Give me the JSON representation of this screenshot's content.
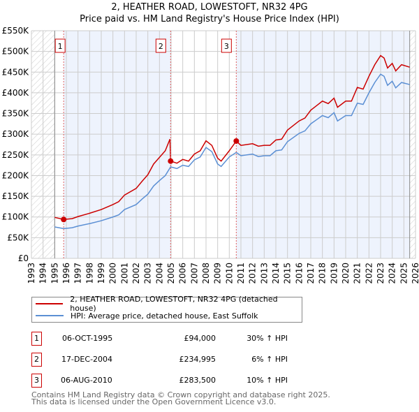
{
  "chart_data": {
    "type": "line",
    "title": "2, HEATHER ROAD, LOWESTOFT, NR32 4PG",
    "subtitle": "Price paid vs. HM Land Registry's House Price Index (HPI)",
    "xlim": [
      1993,
      2026
    ],
    "ylim": [
      0,
      550000
    ],
    "x_ticks": [
      "1993",
      "1994",
      "1995",
      "1996",
      "1997",
      "1998",
      "1999",
      "2000",
      "2001",
      "2002",
      "2003",
      "2004",
      "2005",
      "2006",
      "2007",
      "2008",
      "2009",
      "2010",
      "2011",
      "2012",
      "2013",
      "2014",
      "2015",
      "2016",
      "2017",
      "2018",
      "2019",
      "2020",
      "2021",
      "2022",
      "2023",
      "2024",
      "2025",
      "2026"
    ],
    "y_ticks": [
      {
        "v": 0,
        "label": "£0"
      },
      {
        "v": 50000,
        "label": "£50K"
      },
      {
        "v": 100000,
        "label": "£100K"
      },
      {
        "v": 150000,
        "label": "£150K"
      },
      {
        "v": 200000,
        "label": "£200K"
      },
      {
        "v": 250000,
        "label": "£250K"
      },
      {
        "v": 300000,
        "label": "£300K"
      },
      {
        "v": 350000,
        "label": "£350K"
      },
      {
        "v": 400000,
        "label": "£400K"
      },
      {
        "v": 450000,
        "label": "£450K"
      },
      {
        "v": 500000,
        "label": "£500K"
      },
      {
        "v": 550000,
        "label": "£550K"
      }
    ],
    "grid": true,
    "data_range": [
      1995,
      2025.5
    ],
    "series": [
      {
        "name": "2, HEATHER ROAD, LOWESTOFT, NR32 4PG (detached house)",
        "color": "#cc0000",
        "x": [
          1995,
          1995.77,
          1996.5,
          1997,
          1998,
          1999,
          2000,
          2000.5,
          2001,
          2002,
          2002.5,
          2003,
          2003.5,
          2004,
          2004.5,
          2004.9,
          2004.96,
          2005.5,
          2006,
          2006.5,
          2007,
          2007.5,
          2008,
          2008.5,
          2009,
          2009.3,
          2010,
          2010.6,
          2011,
          2012,
          2012.5,
          2013,
          2013.5,
          2014,
          2014.5,
          2015,
          2016,
          2016.5,
          2017,
          2017.5,
          2018,
          2018.5,
          2019,
          2019.3,
          2020,
          2020.5,
          2021,
          2021.5,
          2022,
          2022.5,
          2023,
          2023.3,
          2023.6,
          2024,
          2024.3,
          2024.8,
          2025.5
        ],
        "y": [
          99,
          94,
          96,
          101,
          109,
          118,
          130,
          137,
          153,
          169,
          186,
          202,
          228,
          244,
          260,
          288,
          235,
          230,
          239,
          235,
          252,
          260,
          284,
          273,
          242,
          235,
          260,
          283.5,
          273,
          277,
          271,
          273,
          273,
          286,
          288,
          310,
          332,
          339,
          358,
          369,
          380,
          374,
          387,
          365,
          380,
          380,
          413,
          409,
          440,
          468,
          490,
          484,
          460,
          471,
          453,
          468,
          462
        ]
      },
      {
        "name": "HPI: Average price, detached house, East Suffolk",
        "color": "#5b8fd4",
        "x": [
          1995,
          1995.77,
          1996.5,
          1997,
          1998,
          1999,
          2000,
          2000.5,
          2001,
          2002,
          2002.5,
          2003,
          2003.5,
          2004,
          2004.5,
          2004.96,
          2005.5,
          2006,
          2006.5,
          2007,
          2007.5,
          2008,
          2008.5,
          2009,
          2009.3,
          2010,
          2010.6,
          2011,
          2012,
          2012.5,
          2013,
          2013.5,
          2014,
          2014.5,
          2015,
          2016,
          2016.5,
          2017,
          2017.5,
          2018,
          2018.5,
          2019,
          2019.3,
          2020,
          2020.5,
          2021,
          2021.5,
          2022,
          2022.5,
          2023,
          2023.3,
          2023.6,
          2024,
          2024.3,
          2024.8,
          2025.5
        ],
        "y": [
          76,
          72,
          74,
          78,
          84,
          91,
          100,
          105,
          118,
          130,
          143,
          155,
          175,
          188,
          200,
          221,
          217,
          225,
          222,
          238,
          245,
          268,
          258,
          228,
          222,
          245,
          256,
          248,
          252,
          246,
          248,
          248,
          260,
          262,
          282,
          302,
          308,
          325,
          335,
          345,
          340,
          352,
          332,
          345,
          345,
          375,
          372,
          400,
          425,
          445,
          440,
          418,
          428,
          412,
          425,
          420
        ]
      }
    ],
    "y_units": "thousands GBP",
    "sales": [
      {
        "n": "1",
        "x": 1995.77,
        "price": 94000,
        "date": "06-OCT-1995",
        "price_label": "£94,000",
        "hpi": "30% ↑ HPI"
      },
      {
        "n": "2",
        "x": 2004.96,
        "price": 234995,
        "date": "17-DEC-2004",
        "price_label": "£234,995",
        "hpi": "6% ↑ HPI"
      },
      {
        "n": "3",
        "x": 2010.6,
        "price": 283500,
        "date": "06-AUG-2010",
        "price_label": "£283,500",
        "hpi": "10% ↑ HPI"
      }
    ],
    "legend": {
      "placement": "below"
    }
  },
  "footer": {
    "line1": "Contains HM Land Registry data © Crown copyright and database right 2025.",
    "line2": "This data is licensed under the Open Government Licence v3.0."
  }
}
